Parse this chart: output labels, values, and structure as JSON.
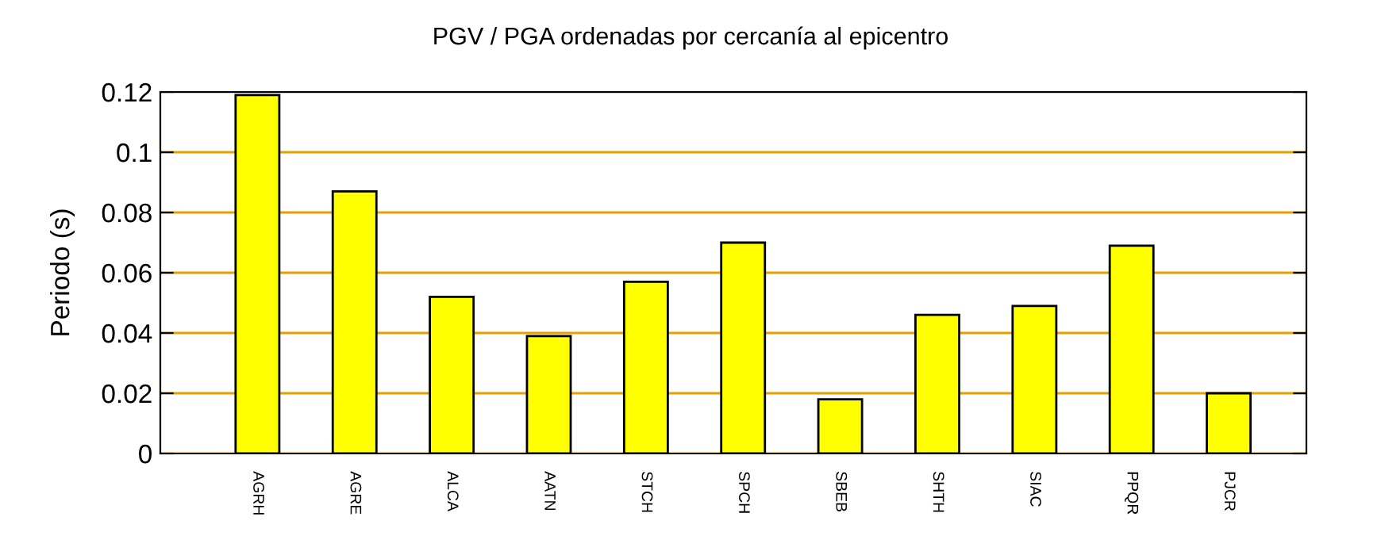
{
  "chart_data": {
    "type": "bar",
    "title": "PGV / PGA ordenadas por cercanía al epicentro",
    "ylabel": "Periodo (s)",
    "categories": [
      "AGRH",
      "AGRE",
      "ALCA",
      "AATN",
      "STCH",
      "SPCH",
      "SBEB",
      "SHTH",
      "SIAC",
      "PPQR",
      "PJCR"
    ],
    "values": [
      0.119,
      0.087,
      0.052,
      0.039,
      0.057,
      0.07,
      0.018,
      0.046,
      0.049,
      0.069,
      0.02
    ],
    "color": "#ffff00",
    "ylim": [
      0,
      0.12
    ],
    "yticks": [
      0,
      0.02,
      0.04,
      0.06,
      0.08,
      0.1,
      0.12
    ],
    "grid": "y"
  }
}
